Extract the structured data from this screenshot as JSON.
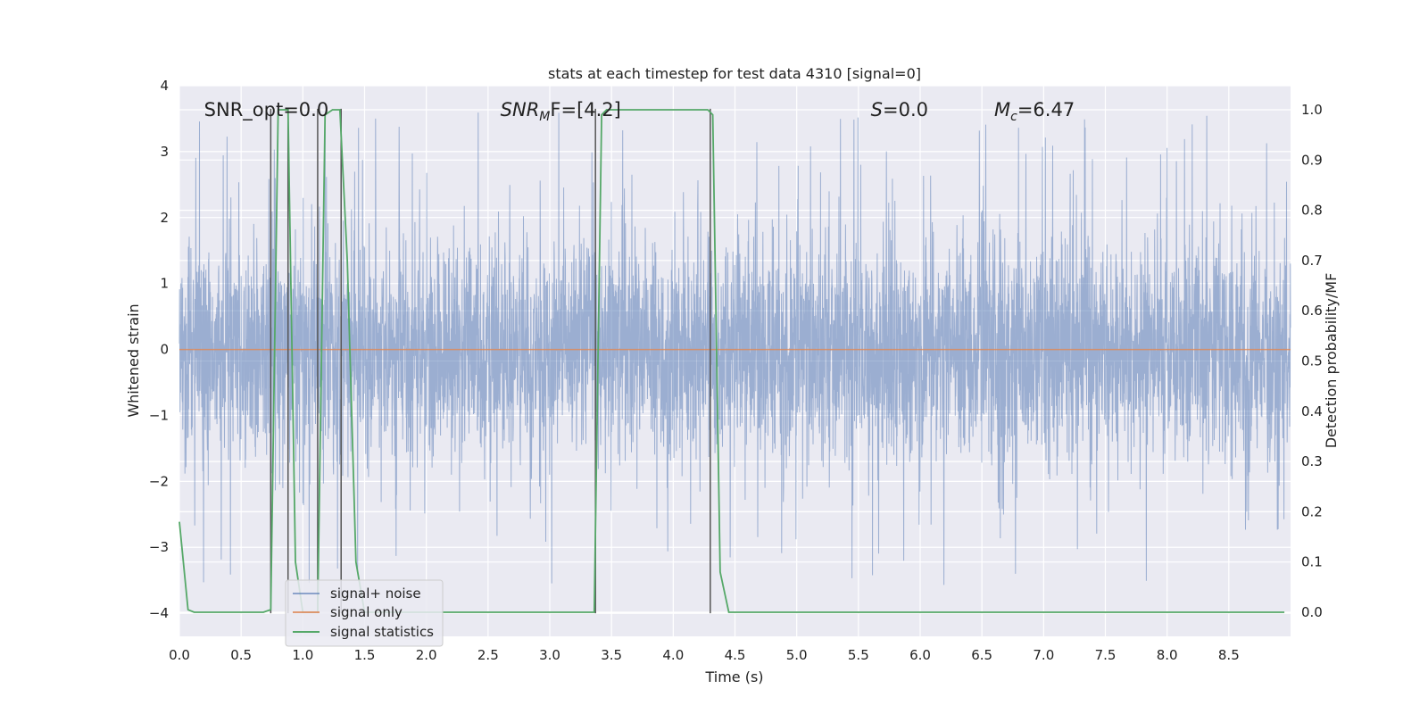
{
  "chart_data": {
    "type": "line",
    "title": "stats at each timestep for test data 4310 [signal=0]",
    "xlabel": "Time (s)",
    "ylabel": "Whitened strain",
    "ylabel_right": "Detection probability/MF",
    "xlim": [
      0.0,
      9.0
    ],
    "ylim": [
      -4.35,
      4.0
    ],
    "ylim_right": [
      -0.048,
      1.048
    ],
    "x_ticks": [
      "0.0",
      "0.5",
      "1.0",
      "1.5",
      "2.0",
      "2.5",
      "3.0",
      "3.5",
      "4.0",
      "4.5",
      "5.0",
      "5.5",
      "6.0",
      "6.5",
      "7.0",
      "7.5",
      "8.0",
      "8.5"
    ],
    "y_ticks": [
      "4",
      "3",
      "2",
      "1",
      "0",
      "−1",
      "−2",
      "−3",
      "−4"
    ],
    "y_ticks_right": [
      "1.0",
      "0.9",
      "0.8",
      "0.7",
      "0.6",
      "0.5",
      "0.4",
      "0.3",
      "0.2",
      "0.1",
      "0.0"
    ],
    "grid": true,
    "legend_position": "lower-left",
    "annotations": [
      {
        "name": "snr-opt",
        "label": "SNR_opt=0.0",
        "x": 0.2,
        "y": 3.65
      },
      {
        "name": "snr-mf",
        "label": "SNR",
        "sub": "M",
        "suffix": "F=[4.2]",
        "italic": true,
        "x": 2.6,
        "y": 3.65
      },
      {
        "name": "s-value",
        "label": "S",
        "suffix": "=0.0",
        "italic": true,
        "x": 5.6,
        "y": 3.65
      },
      {
        "name": "mc-value",
        "label": "M",
        "sub": "c",
        "suffix": "=6.47",
        "italic": true,
        "x": 6.6,
        "y": 3.65
      }
    ],
    "series": [
      {
        "name": "signal+ noise",
        "color": "#4c72b0",
        "noise_envelope": {
          "sigma": 0.85,
          "typical_peak": 2.3,
          "max_peak": 3.6,
          "min_trough": -3.65
        },
        "x_range": [
          0.0,
          9.0
        ]
      },
      {
        "name": "signal only",
        "color": "#dd8452",
        "x": [
          0.0,
          9.0
        ],
        "y": [
          0.0,
          0.0
        ]
      },
      {
        "name": "signal statistics",
        "color": "#55a868",
        "axis": "right",
        "x": [
          0.0,
          0.07,
          0.12,
          0.68,
          0.74,
          0.8,
          0.88,
          0.94,
          1.0,
          1.06,
          1.12,
          1.18,
          1.24,
          1.3,
          1.36,
          1.43,
          1.5,
          3.36,
          3.42,
          3.46,
          3.5,
          4.28,
          4.32,
          4.38,
          4.45,
          8.95
        ],
        "y": [
          0.18,
          0.005,
          0.0,
          0.0,
          0.005,
          1.0,
          1.0,
          0.1,
          0.0,
          0.0,
          0.0,
          0.99,
          1.0,
          1.0,
          0.7,
          0.1,
          0.0,
          0.0,
          0.99,
          1.0,
          1.0,
          1.0,
          0.99,
          0.08,
          0.0,
          0.0
        ]
      }
    ],
    "vertical_markers": {
      "color": "#555555",
      "x": [
        0.74,
        0.88,
        1.12,
        1.31,
        3.37,
        4.3
      ],
      "y_top": 3.65,
      "y_bottom": -4.0
    }
  }
}
